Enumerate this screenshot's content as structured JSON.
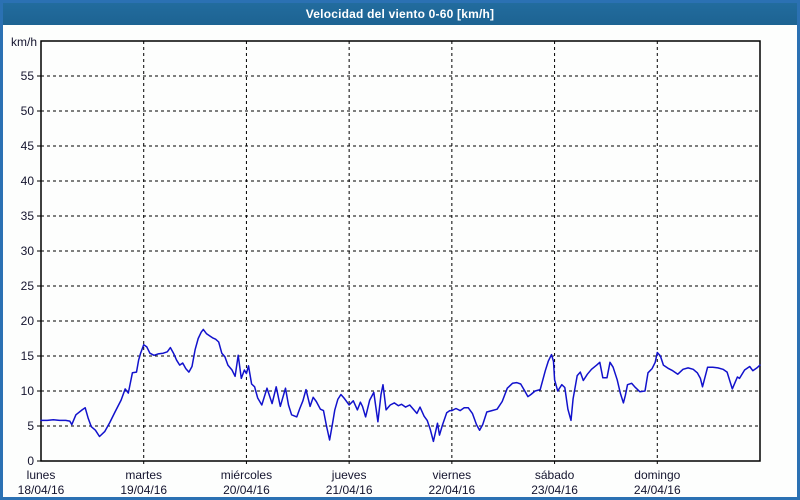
{
  "window": {
    "title": "Velocidad del viento 0-60 [km/h]"
  },
  "colors": {
    "frame_border": "#2b71b3",
    "titlebar_bg": "#206898",
    "titlebar_text": "#ffffff",
    "chart_bg": "#fdfefd",
    "grid": "#000000",
    "axis_border": "#000000",
    "axis_text": "#14142e",
    "line": "#1212cc"
  },
  "chart_data": {
    "type": "line",
    "title": "Velocidad del viento 0-60 [km/h]",
    "ylabel": "km/h",
    "xlabel": "",
    "ylim": [
      0,
      60
    ],
    "xlim": [
      0,
      7
    ],
    "ytick_values": [
      0,
      5,
      10,
      15,
      20,
      25,
      30,
      35,
      40,
      45,
      50,
      55
    ],
    "grid": true,
    "legend": "none",
    "x_categories": [
      {
        "day": "lunes",
        "date": "18/04/16"
      },
      {
        "day": "martes",
        "date": "19/04/16"
      },
      {
        "day": "miércoles",
        "date": "20/04/16"
      },
      {
        "day": "jueves",
        "date": "21/04/16"
      },
      {
        "day": "viernes",
        "date": "22/04/16"
      },
      {
        "day": "sábado",
        "date": "23/04/16"
      },
      {
        "day": "domingo",
        "date": "24/04/16"
      }
    ],
    "series": [
      {
        "name": "Velocidad del viento",
        "units": "km/h",
        "points": [
          [
            0.0,
            5.8
          ],
          [
            0.06,
            5.8
          ],
          [
            0.12,
            5.9
          ],
          [
            0.18,
            5.8
          ],
          [
            0.24,
            5.8
          ],
          [
            0.28,
            5.7
          ],
          [
            0.3,
            5.2
          ],
          [
            0.34,
            6.6
          ],
          [
            0.4,
            7.3
          ],
          [
            0.43,
            7.6
          ],
          [
            0.46,
            6.1
          ],
          [
            0.49,
            4.9
          ],
          [
            0.53,
            4.4
          ],
          [
            0.57,
            3.5
          ],
          [
            0.62,
            4.2
          ],
          [
            0.67,
            5.5
          ],
          [
            0.72,
            7.0
          ],
          [
            0.78,
            8.7
          ],
          [
            0.82,
            10.3
          ],
          [
            0.85,
            9.7
          ],
          [
            0.89,
            12.6
          ],
          [
            0.93,
            12.7
          ],
          [
            0.95,
            14.4
          ],
          [
            0.97,
            15.4
          ],
          [
            1.0,
            16.6
          ],
          [
            1.03,
            16.3
          ],
          [
            1.06,
            15.4
          ],
          [
            1.1,
            15.1
          ],
          [
            1.14,
            15.3
          ],
          [
            1.19,
            15.4
          ],
          [
            1.23,
            15.6
          ],
          [
            1.26,
            16.2
          ],
          [
            1.29,
            15.4
          ],
          [
            1.32,
            14.4
          ],
          [
            1.35,
            13.7
          ],
          [
            1.38,
            14.0
          ],
          [
            1.41,
            13.2
          ],
          [
            1.44,
            12.7
          ],
          [
            1.47,
            13.5
          ],
          [
            1.5,
            15.9
          ],
          [
            1.53,
            17.5
          ],
          [
            1.56,
            18.4
          ],
          [
            1.58,
            18.8
          ],
          [
            1.61,
            18.2
          ],
          [
            1.64,
            17.9
          ],
          [
            1.67,
            17.6
          ],
          [
            1.7,
            17.4
          ],
          [
            1.73,
            17.0
          ],
          [
            1.76,
            15.4
          ],
          [
            1.79,
            14.9
          ],
          [
            1.82,
            13.7
          ],
          [
            1.86,
            13.0
          ],
          [
            1.89,
            12.1
          ],
          [
            1.92,
            15.1
          ],
          [
            1.95,
            11.8
          ],
          [
            1.98,
            13.0
          ],
          [
            2.0,
            12.5
          ],
          [
            2.02,
            13.6
          ],
          [
            2.05,
            11.0
          ],
          [
            2.08,
            10.6
          ],
          [
            2.11,
            9.0
          ],
          [
            2.15,
            8.0
          ],
          [
            2.2,
            10.4
          ],
          [
            2.25,
            8.2
          ],
          [
            2.29,
            10.6
          ],
          [
            2.33,
            7.8
          ],
          [
            2.38,
            10.4
          ],
          [
            2.41,
            8.0
          ],
          [
            2.44,
            6.6
          ],
          [
            2.49,
            6.3
          ],
          [
            2.52,
            7.5
          ],
          [
            2.55,
            8.6
          ],
          [
            2.58,
            10.2
          ],
          [
            2.62,
            7.8
          ],
          [
            2.65,
            9.1
          ],
          [
            2.68,
            8.5
          ],
          [
            2.72,
            7.4
          ],
          [
            2.75,
            7.2
          ],
          [
            2.78,
            5.0
          ],
          [
            2.81,
            3.0
          ],
          [
            2.84,
            5.5
          ],
          [
            2.86,
            7.3
          ],
          [
            2.89,
            8.8
          ],
          [
            2.92,
            9.5
          ],
          [
            2.95,
            9.0
          ],
          [
            2.98,
            8.4
          ],
          [
            3.0,
            8.0
          ],
          [
            3.04,
            8.6
          ],
          [
            3.08,
            7.3
          ],
          [
            3.11,
            8.4
          ],
          [
            3.13,
            7.8
          ],
          [
            3.16,
            6.3
          ],
          [
            3.2,
            8.7
          ],
          [
            3.24,
            9.8
          ],
          [
            3.28,
            5.6
          ],
          [
            3.31,
            9.5
          ],
          [
            3.33,
            10.9
          ],
          [
            3.36,
            7.3
          ],
          [
            3.4,
            8.0
          ],
          [
            3.44,
            8.3
          ],
          [
            3.48,
            7.9
          ],
          [
            3.51,
            8.1
          ],
          [
            3.55,
            7.7
          ],
          [
            3.59,
            8.0
          ],
          [
            3.63,
            7.3
          ],
          [
            3.66,
            6.8
          ],
          [
            3.69,
            7.7
          ],
          [
            3.73,
            6.4
          ],
          [
            3.76,
            5.8
          ],
          [
            3.79,
            4.5
          ],
          [
            3.82,
            2.8
          ],
          [
            3.86,
            5.4
          ],
          [
            3.88,
            3.7
          ],
          [
            3.91,
            5.2
          ],
          [
            3.95,
            6.9
          ],
          [
            3.98,
            7.2
          ],
          [
            4.0,
            7.2
          ],
          [
            4.04,
            7.5
          ],
          [
            4.08,
            7.2
          ],
          [
            4.12,
            7.6
          ],
          [
            4.16,
            7.6
          ],
          [
            4.2,
            6.8
          ],
          [
            4.24,
            5.2
          ],
          [
            4.27,
            4.4
          ],
          [
            4.3,
            5.2
          ],
          [
            4.34,
            7.0
          ],
          [
            4.39,
            7.2
          ],
          [
            4.44,
            7.4
          ],
          [
            4.49,
            8.5
          ],
          [
            4.54,
            10.4
          ],
          [
            4.59,
            11.1
          ],
          [
            4.63,
            11.2
          ],
          [
            4.67,
            11.0
          ],
          [
            4.71,
            10.0
          ],
          [
            4.74,
            9.2
          ],
          [
            4.77,
            9.5
          ],
          [
            4.81,
            10.0
          ],
          [
            4.86,
            10.2
          ],
          [
            4.91,
            12.9
          ],
          [
            4.94,
            14.3
          ],
          [
            4.97,
            15.2
          ],
          [
            4.99,
            14.2
          ],
          [
            5.0,
            11.6
          ],
          [
            5.03,
            10.0
          ],
          [
            5.07,
            10.9
          ],
          [
            5.1,
            10.5
          ],
          [
            5.13,
            7.4
          ],
          [
            5.16,
            5.8
          ],
          [
            5.18,
            8.9
          ],
          [
            5.22,
            12.2
          ],
          [
            5.25,
            12.7
          ],
          [
            5.28,
            11.5
          ],
          [
            5.32,
            12.4
          ],
          [
            5.36,
            13.1
          ],
          [
            5.41,
            13.7
          ],
          [
            5.44,
            14.1
          ],
          [
            5.47,
            11.9
          ],
          [
            5.51,
            11.9
          ],
          [
            5.54,
            14.1
          ],
          [
            5.57,
            13.4
          ],
          [
            5.61,
            11.6
          ],
          [
            5.64,
            9.7
          ],
          [
            5.67,
            8.3
          ],
          [
            5.69,
            9.4
          ],
          [
            5.71,
            10.9
          ],
          [
            5.75,
            11.1
          ],
          [
            5.78,
            10.6
          ],
          [
            5.83,
            9.9
          ],
          [
            5.88,
            10.0
          ],
          [
            5.91,
            12.6
          ],
          [
            5.95,
            13.2
          ],
          [
            5.98,
            14.1
          ],
          [
            6.0,
            15.5
          ],
          [
            6.03,
            15.0
          ],
          [
            6.06,
            13.7
          ],
          [
            6.11,
            13.2
          ],
          [
            6.15,
            12.9
          ],
          [
            6.2,
            12.4
          ],
          [
            6.25,
            13.1
          ],
          [
            6.3,
            13.3
          ],
          [
            6.35,
            13.1
          ],
          [
            6.39,
            12.6
          ],
          [
            6.42,
            11.8
          ],
          [
            6.44,
            10.6
          ],
          [
            6.49,
            13.4
          ],
          [
            6.54,
            13.4
          ],
          [
            6.59,
            13.3
          ],
          [
            6.64,
            13.1
          ],
          [
            6.68,
            12.7
          ],
          [
            6.73,
            10.3
          ],
          [
            6.78,
            12.0
          ],
          [
            6.8,
            11.8
          ],
          [
            6.85,
            13.0
          ],
          [
            6.9,
            13.5
          ],
          [
            6.93,
            12.9
          ],
          [
            6.97,
            13.3
          ],
          [
            7.0,
            13.7
          ]
        ]
      }
    ]
  }
}
